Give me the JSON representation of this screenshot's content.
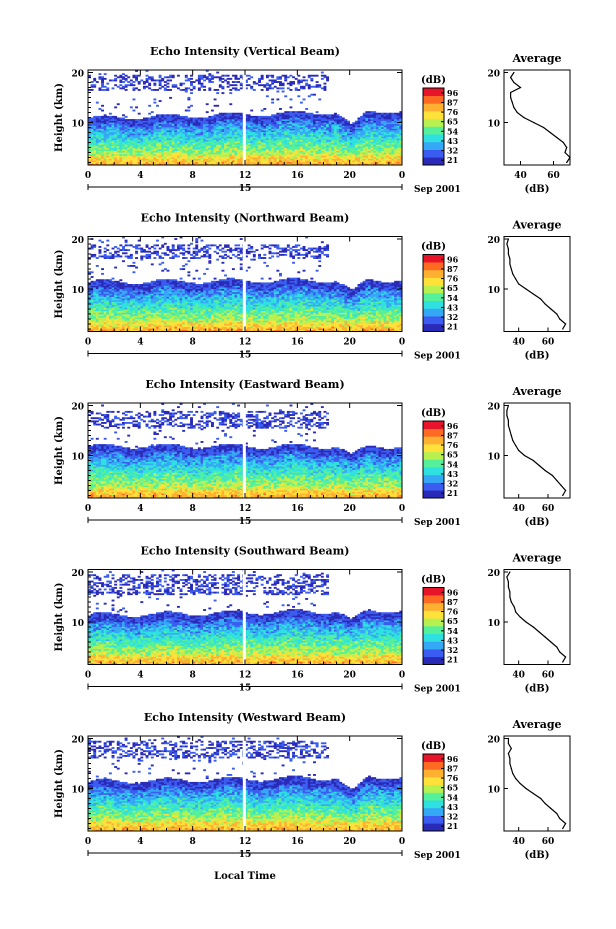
{
  "figure": {
    "date_label": "Sep 2001",
    "bottom_xlabel": "Local Time",
    "colorbar_unit": "(dB)",
    "colorbar_ticks": [
      "96",
      "87",
      "76",
      "65",
      "54",
      "43",
      "32",
      "21"
    ],
    "colorbar_colors": [
      "#2a2ab8",
      "#3a5cf0",
      "#35a8f5",
      "#2fe0e0",
      "#55f09a",
      "#b8f050",
      "#ffe13a",
      "#ffb030",
      "#ff6a22",
      "#e8152a"
    ]
  },
  "chart_data": [
    {
      "type": "heatmap",
      "title": "Echo Intensity (Vertical Beam)",
      "xlabel": "",
      "ylabel": "Height (km)",
      "x_ticks": [
        "0",
        "4",
        "8",
        "12",
        "16",
        "20",
        "0"
      ],
      "x_range": [
        0,
        24
      ],
      "y_range": [
        1.5,
        20.5
      ],
      "y_ticks": [
        "10",
        "20"
      ],
      "day_label": "15",
      "tropopause_start_km": 9.5,
      "tropopause_end_km": 11,
      "dip_time_h": 20.2,
      "dip_depth_km": 3,
      "upper_band": [
        16.5,
        19.5
      ],
      "profile": {
        "title": "Average",
        "xlabel": "(dB)",
        "x_ticks": [
          "40",
          "60"
        ],
        "x_range": [
          30,
          70
        ],
        "height_km": [
          2,
          3,
          4,
          5,
          6,
          7,
          8,
          9,
          10,
          11,
          12,
          13,
          14,
          15,
          16,
          17,
          18,
          19,
          20
        ],
        "value_db": [
          68,
          70,
          67,
          68,
          66,
          62,
          58,
          54,
          48,
          42,
          38,
          36,
          35,
          34,
          34,
          40,
          36,
          34,
          36
        ]
      }
    },
    {
      "type": "heatmap",
      "title": "Echo Intensity (Northward Beam)",
      "xlabel": "",
      "ylabel": "Height (km)",
      "x_ticks": [
        "0",
        "4",
        "8",
        "12",
        "16",
        "20",
        "0"
      ],
      "x_range": [
        0,
        24
      ],
      "y_range": [
        1.5,
        20.5
      ],
      "y_ticks": [
        "10",
        "20"
      ],
      "day_label": "15",
      "tropopause_start_km": 10,
      "tropopause_end_km": 10.5,
      "dip_time_h": 20.2,
      "dip_depth_km": 2.5,
      "upper_band": [
        16,
        19
      ],
      "profile": {
        "title": "Average",
        "xlabel": "(dB)",
        "x_ticks": [
          "40",
          "60"
        ],
        "x_range": [
          30,
          75
        ],
        "height_km": [
          2,
          3,
          4,
          5,
          6,
          7,
          8,
          9,
          10,
          11,
          12,
          13,
          14,
          15,
          16,
          17,
          18,
          19,
          20
        ],
        "value_db": [
          70,
          72,
          68,
          66,
          62,
          58,
          55,
          50,
          45,
          40,
          38,
          36,
          35,
          34,
          34,
          33,
          33,
          32,
          33
        ]
      }
    },
    {
      "type": "heatmap",
      "title": "Echo Intensity (Eastward Beam)",
      "xlabel": "",
      "ylabel": "Height (km)",
      "x_ticks": [
        "0",
        "4",
        "8",
        "12",
        "16",
        "20",
        "0"
      ],
      "x_range": [
        0,
        24
      ],
      "y_range": [
        1.5,
        20.5
      ],
      "y_ticks": [
        "10",
        "20"
      ],
      "day_label": "15",
      "tropopause_start_km": 10.5,
      "tropopause_end_km": 10.5,
      "dip_time_h": 20.2,
      "dip_depth_km": 2,
      "upper_band": [
        15.5,
        19
      ],
      "profile": {
        "title": "Average",
        "xlabel": "(dB)",
        "x_ticks": [
          "40",
          "60"
        ],
        "x_range": [
          30,
          75
        ],
        "height_km": [
          2,
          3,
          4,
          5,
          6,
          7,
          8,
          9,
          10,
          11,
          12,
          13,
          14,
          15,
          16,
          17,
          18,
          19,
          20
        ],
        "value_db": [
          70,
          72,
          69,
          66,
          63,
          58,
          54,
          50,
          44,
          40,
          38,
          36,
          35,
          34,
          33,
          33,
          32,
          32,
          33
        ]
      }
    },
    {
      "type": "heatmap",
      "title": "Echo Intensity (Southward Beam)",
      "xlabel": "",
      "ylabel": "Height (km)",
      "x_ticks": [
        "0",
        "4",
        "8",
        "12",
        "16",
        "20",
        "0"
      ],
      "x_range": [
        0,
        24
      ],
      "y_range": [
        1.5,
        20.5
      ],
      "y_ticks": [
        "10",
        "20"
      ],
      "day_label": "15",
      "tropopause_start_km": 10,
      "tropopause_end_km": 11,
      "dip_time_h": 20.2,
      "dip_depth_km": 2,
      "upper_band": [
        15.5,
        19.5
      ],
      "profile": {
        "title": "Average",
        "xlabel": "(dB)",
        "x_ticks": [
          "40",
          "60"
        ],
        "x_range": [
          30,
          75
        ],
        "height_km": [
          2,
          3,
          4,
          5,
          6,
          7,
          8,
          9,
          10,
          11,
          12,
          13,
          14,
          15,
          16,
          17,
          18,
          19,
          20
        ],
        "value_db": [
          70,
          72,
          68,
          66,
          62,
          58,
          54,
          50,
          45,
          41,
          38,
          37,
          35,
          34,
          34,
          33,
          33,
          32,
          34
        ]
      }
    },
    {
      "type": "heatmap",
      "title": "Echo Intensity (Westward Beam)",
      "xlabel": "",
      "ylabel": "Height (km)",
      "x_ticks": [
        "0",
        "4",
        "8",
        "12",
        "16",
        "20",
        "0"
      ],
      "x_range": [
        0,
        24
      ],
      "y_range": [
        1.5,
        20.5
      ],
      "y_ticks": [
        "10",
        "20"
      ],
      "day_label": "15",
      "tropopause_start_km": 10,
      "tropopause_end_km": 11,
      "dip_time_h": 20.2,
      "dip_depth_km": 3,
      "upper_band": [
        16,
        19.5
      ],
      "profile": {
        "title": "Average",
        "xlabel": "(dB)",
        "x_ticks": [
          "40",
          "60"
        ],
        "x_range": [
          30,
          75
        ],
        "height_km": [
          2,
          3,
          4,
          5,
          6,
          7,
          8,
          9,
          10,
          11,
          12,
          13,
          14,
          15,
          16,
          17,
          18,
          19,
          20
        ],
        "value_db": [
          70,
          72,
          68,
          66,
          62,
          58,
          55,
          50,
          45,
          41,
          38,
          36,
          35,
          34,
          34,
          33,
          35,
          33,
          33
        ]
      }
    }
  ]
}
